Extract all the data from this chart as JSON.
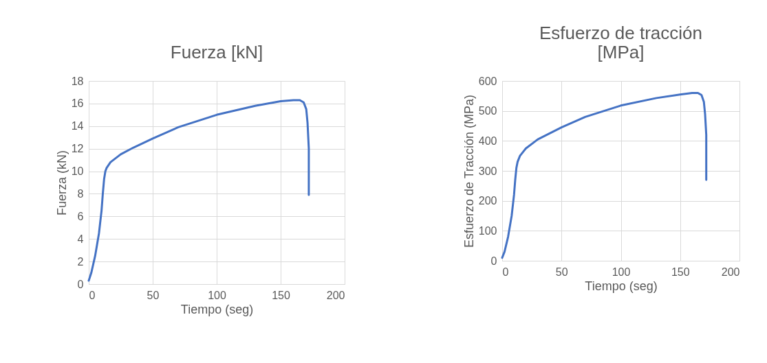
{
  "chart_data": [
    {
      "type": "line",
      "title": "Fuerza [kN]",
      "xlabel": "Tiempo  (seg)",
      "ylabel": "Fuerza  (kN)",
      "xlim": [
        0,
        200
      ],
      "xticks": [
        0,
        50,
        100,
        150,
        200
      ],
      "ylim": [
        0,
        18
      ],
      "yticks": [
        0,
        2,
        4,
        6,
        8,
        10,
        12,
        14,
        16,
        18
      ],
      "grid": true,
      "marker": "none",
      "line_style": "solid",
      "series": [
        {
          "color": "#4472c4",
          "x": [
            0,
            2,
            5,
            8,
            10,
            11,
            12,
            13,
            14,
            17,
            25,
            35,
            50,
            70,
            100,
            130,
            150,
            160,
            165,
            168,
            170,
            171,
            172,
            172
          ],
          "values": [
            0.3,
            1,
            2.5,
            4.5,
            6.5,
            8,
            9.3,
            10,
            10.3,
            10.8,
            11.5,
            12.1,
            12.9,
            13.9,
            15.0,
            15.8,
            16.2,
            16.3,
            16.3,
            16.1,
            15.5,
            14.3,
            12,
            7.9
          ]
        }
      ]
    },
    {
      "type": "line",
      "title": "Esfuerzo de tracción [MPa]",
      "xlabel": "Tiempo  (seg)",
      "ylabel": "Esfuerzo de Tracción  (MPa)",
      "xlim": [
        0,
        200
      ],
      "xticks": [
        0,
        50,
        100,
        150,
        200
      ],
      "ylim": [
        0,
        600
      ],
      "yticks": [
        0,
        100,
        200,
        300,
        400,
        500,
        600
      ],
      "grid": true,
      "marker": "none",
      "line_style": "solid",
      "series": [
        {
          "color": "#4472c4",
          "x": [
            0,
            2,
            5,
            8,
            10,
            11,
            12,
            13,
            15,
            20,
            30,
            50,
            70,
            100,
            130,
            150,
            160,
            165,
            168,
            170,
            171,
            172,
            172
          ],
          "values": [
            10,
            30,
            80,
            150,
            220,
            270,
            310,
            330,
            350,
            375,
            405,
            445,
            480,
            518,
            543,
            555,
            560,
            560,
            553,
            530,
            490,
            420,
            270
          ]
        }
      ]
    }
  ]
}
